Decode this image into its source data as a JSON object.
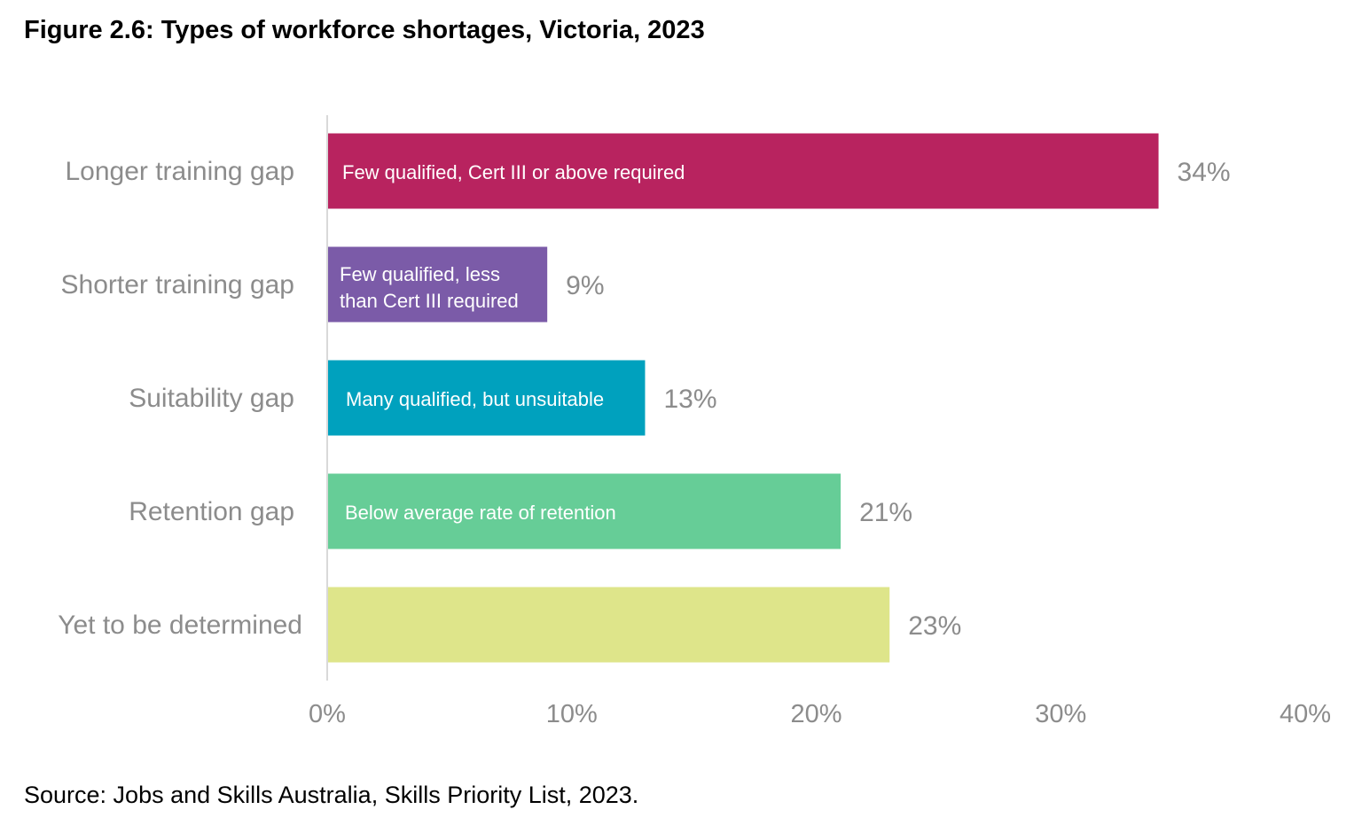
{
  "title": "Figure 2.6: Types of workforce shortages, Victoria, 2023",
  "source": "Source: Jobs and Skills Australia, Skills Priority List, 2023.",
  "chart_data": {
    "type": "bar",
    "orientation": "horizontal",
    "title": "Figure 2.6: Types of workforce shortages, Victoria, 2023",
    "categories": [
      "Longer training gap",
      "Shorter training gap",
      "Suitability gap",
      "Retention gap",
      "Yet to be determined"
    ],
    "values": [
      34,
      9,
      13,
      21,
      23
    ],
    "data_labels": [
      "34%",
      "9%",
      "13%",
      "21%",
      "23%"
    ],
    "bar_labels": [
      [
        "Few qualified, Cert III or above required"
      ],
      [
        "Few qualified, less",
        "than Cert III required"
      ],
      [
        "Many qualified, but unsuitable"
      ],
      [
        "Below average rate of retention"
      ],
      []
    ],
    "colors": [
      "#b8235f",
      "#7b5ba8",
      "#00a1be",
      "#66cd97",
      "#dee58a"
    ],
    "xlim": [
      0,
      40
    ],
    "xticks": [
      0,
      10,
      20,
      30,
      40
    ],
    "xtick_labels": [
      "0%",
      "10%",
      "20%",
      "30%",
      "40%"
    ],
    "xlabel": "",
    "ylabel": "",
    "grid": false,
    "legend": "none"
  }
}
